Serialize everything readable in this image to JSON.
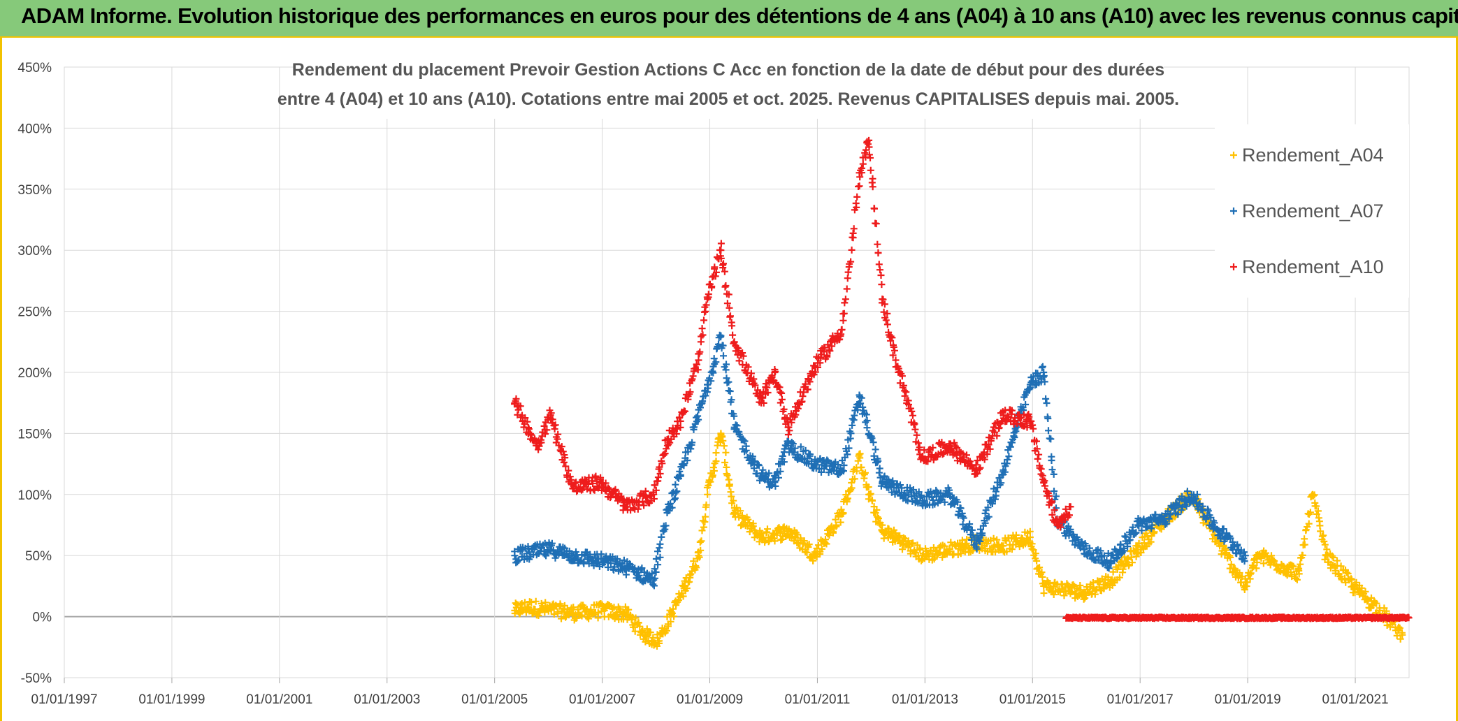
{
  "header": {
    "title": "ADAM Informe. Evolution historique des performances en euros pour des détentions de 4 ans (A04) à 10 ans (A10) avec les revenus connus capitalisés"
  },
  "chart_data": {
    "type": "scatter",
    "title_lines": [
      "Rendement du placement Prevoir Gestion Actions C Acc en fonction de la date de début pour des durées",
      "entre 4 (A04) et 10 ans (A10). Cotations entre mai 2005 et oct. 2025. Revenus CAPITALISES depuis mai. 2005."
    ],
    "xlabel": "",
    "ylabel": "",
    "x_ticks": [
      "01/01/1997",
      "01/01/1999",
      "01/01/2001",
      "01/01/2003",
      "01/01/2005",
      "01/01/2007",
      "01/01/2009",
      "01/01/2011",
      "01/01/2013",
      "01/01/2015",
      "01/01/2017",
      "01/01/2019",
      "01/01/2021"
    ],
    "xlim": [
      "01/01/1997",
      "01/01/2022"
    ],
    "y_ticks": [
      "-50%",
      "0%",
      "50%",
      "100%",
      "150%",
      "200%",
      "250%",
      "300%",
      "350%",
      "400%",
      "450%"
    ],
    "ylim": [
      -50,
      450
    ],
    "grid": true,
    "legend_position": "right",
    "marker": "+",
    "series": [
      {
        "name": "Rendement_A04",
        "color": "#ffc000",
        "points": [
          [
            "05/2005",
            5
          ],
          [
            "08/2005",
            8
          ],
          [
            "12/2005",
            6
          ],
          [
            "06/2006",
            3
          ],
          [
            "01/2007",
            5
          ],
          [
            "06/2007",
            2
          ],
          [
            "10/2007",
            -15
          ],
          [
            "01/2008",
            -20
          ],
          [
            "04/2008",
            2
          ],
          [
            "07/2008",
            25
          ],
          [
            "10/2008",
            50
          ],
          [
            "12/2008",
            100
          ],
          [
            "03/2009",
            150
          ],
          [
            "06/2009",
            85
          ],
          [
            "12/2009",
            65
          ],
          [
            "06/2010",
            70
          ],
          [
            "12/2010",
            50
          ],
          [
            "06/2011",
            85
          ],
          [
            "10/2011",
            130
          ],
          [
            "12/2011",
            100
          ],
          [
            "03/2012",
            70
          ],
          [
            "06/2012",
            65
          ],
          [
            "12/2012",
            50
          ],
          [
            "06/2013",
            55
          ],
          [
            "12/2013",
            60
          ],
          [
            "06/2014",
            58
          ],
          [
            "12/2014",
            65
          ],
          [
            "03/2015",
            25
          ],
          [
            "12/2015",
            20
          ],
          [
            "06/2016",
            30
          ],
          [
            "12/2016",
            55
          ],
          [
            "06/2017",
            80
          ],
          [
            "12/2017",
            100
          ],
          [
            "06/2018",
            60
          ],
          [
            "12/2018",
            25
          ],
          [
            "03/2019",
            50
          ],
          [
            "12/2019",
            35
          ],
          [
            "03/2020",
            100
          ],
          [
            "06/2020",
            50
          ],
          [
            "12/2020",
            25
          ],
          [
            "06/2021",
            5
          ],
          [
            "11/2021",
            -15
          ]
        ]
      },
      {
        "name": "Rendement_A07",
        "color": "#1f6fb5",
        "points": [
          [
            "05/2005",
            50
          ],
          [
            "01/2006",
            55
          ],
          [
            "06/2006",
            50
          ],
          [
            "01/2007",
            45
          ],
          [
            "06/2007",
            40
          ],
          [
            "12/2007",
            30
          ],
          [
            "03/2008",
            85
          ],
          [
            "06/2008",
            115
          ],
          [
            "12/2008",
            190
          ],
          [
            "03/2009",
            230
          ],
          [
            "06/2009",
            155
          ],
          [
            "12/2009",
            115
          ],
          [
            "03/2010",
            110
          ],
          [
            "06/2010",
            140
          ],
          [
            "12/2010",
            125
          ],
          [
            "06/2011",
            120
          ],
          [
            "10/2011",
            180
          ],
          [
            "03/2012",
            110
          ],
          [
            "12/2012",
            95
          ],
          [
            "06/2013",
            100
          ],
          [
            "12/2013",
            60
          ],
          [
            "06/2014",
            120
          ],
          [
            "12/2014",
            190
          ],
          [
            "03/2015",
            200
          ],
          [
            "06/2015",
            80
          ],
          [
            "12/2015",
            55
          ],
          [
            "06/2016",
            45
          ],
          [
            "12/2016",
            75
          ],
          [
            "06/2017",
            80
          ],
          [
            "12/2017",
            100
          ],
          [
            "06/2018",
            70
          ],
          [
            "12/2018",
            50
          ]
        ]
      },
      {
        "name": "Rendement_A10",
        "color": "#ee1c1c",
        "points": [
          [
            "05/2005",
            175
          ],
          [
            "10/2005",
            140
          ],
          [
            "01/2006",
            165
          ],
          [
            "06/2006",
            105
          ],
          [
            "12/2006",
            110
          ],
          [
            "06/2007",
            90
          ],
          [
            "12/2007",
            100
          ],
          [
            "03/2008",
            145
          ],
          [
            "06/2008",
            160
          ],
          [
            "10/2008",
            210
          ],
          [
            "12/2008",
            260
          ],
          [
            "03/2009",
            300
          ],
          [
            "06/2009",
            225
          ],
          [
            "12/2009",
            175
          ],
          [
            "03/2010",
            200
          ],
          [
            "06/2010",
            155
          ],
          [
            "12/2010",
            205
          ],
          [
            "06/2011",
            235
          ],
          [
            "10/2011",
            360
          ],
          [
            "12/2011",
            390
          ],
          [
            "03/2012",
            260
          ],
          [
            "06/2012",
            210
          ],
          [
            "12/2012",
            130
          ],
          [
            "06/2013",
            140
          ],
          [
            "12/2013",
            120
          ],
          [
            "06/2014",
            165
          ],
          [
            "12/2014",
            160
          ],
          [
            "03/2015",
            110
          ],
          [
            "06/2015",
            75
          ],
          [
            "09/2015",
            90
          ]
        ]
      }
    ]
  }
}
